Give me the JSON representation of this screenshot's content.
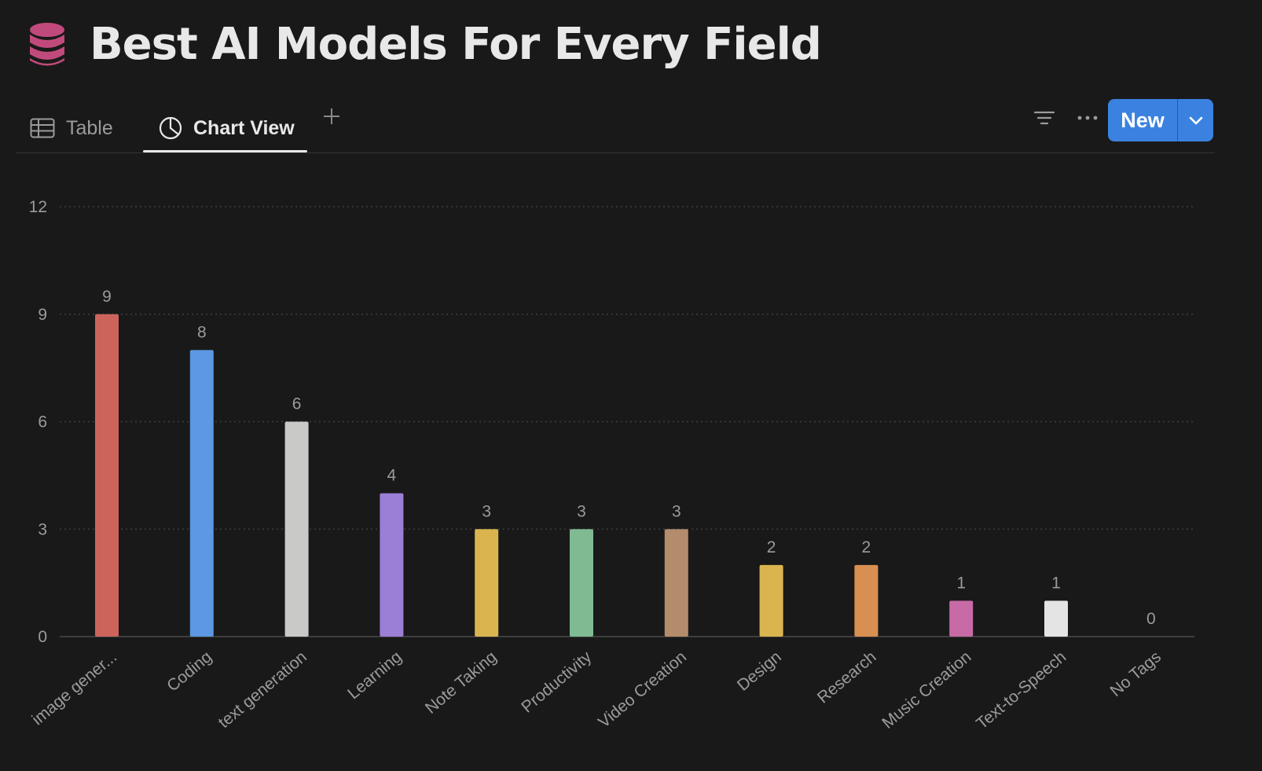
{
  "page": {
    "title": "Best AI Models For Every Field",
    "icon": "database-icon",
    "icon_color": "#c14a7c"
  },
  "tabs": [
    {
      "label": "Table",
      "icon": "table-icon",
      "active": false
    },
    {
      "label": "Chart View",
      "icon": "pie-chart-icon",
      "active": true
    }
  ],
  "toolbar": {
    "add_view_icon": "plus-icon",
    "filter_icon": "filter-icon",
    "more_icon": "more-icon",
    "new_label": "New",
    "new_dropdown_icon": "chevron-down-icon",
    "accent": "#3b82e0"
  },
  "chart_data": {
    "type": "bar",
    "categories": [
      "image gener...",
      "Coding",
      "text generation",
      "Learning",
      "Note Taking",
      "Productivity",
      "Video Creation",
      "Design",
      "Research",
      "Music Creation",
      "Text-to-Speech",
      "No Tags"
    ],
    "values": [
      9,
      8,
      6,
      4,
      3,
      3,
      3,
      2,
      2,
      1,
      1,
      0
    ],
    "colors": [
      "#cd645c",
      "#5c98e3",
      "#c9c9c7",
      "#9b7fd6",
      "#dab54f",
      "#7fba93",
      "#b38c6c",
      "#dab54f",
      "#d88f52",
      "#c86aa5",
      "#e4e4e4",
      "#888888"
    ],
    "ylim": [
      0,
      12
    ],
    "yticks": [
      0,
      3,
      6,
      9,
      12
    ],
    "grid": true,
    "data_labels": true
  }
}
